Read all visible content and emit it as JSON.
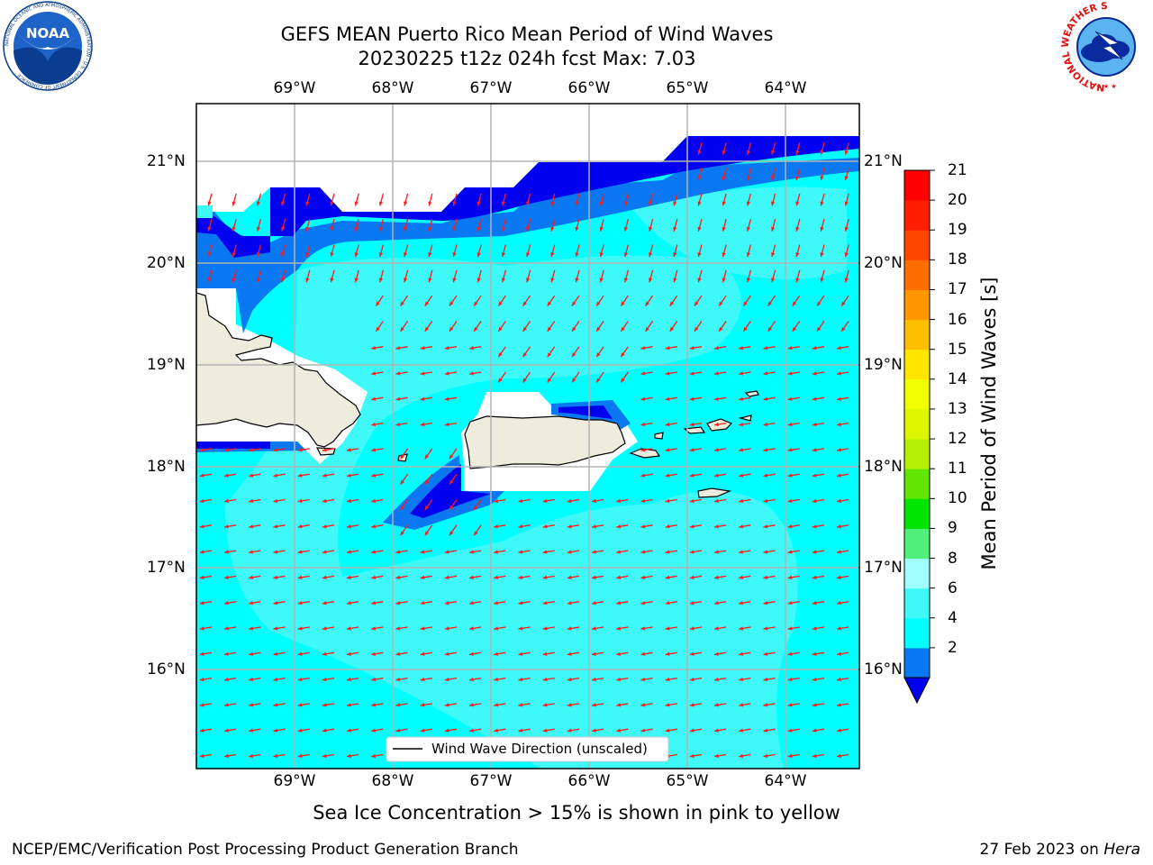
{
  "title": {
    "line1": "GEFS MEAN Puerto Rico Mean Period of Wind Waves",
    "line2": "20230225 t12z 024h fcst   Max: 7.03"
  },
  "longitude_labels": [
    "69°W",
    "68°W",
    "67°W",
    "66°W",
    "65°W",
    "64°W"
  ],
  "latitude_labels": [
    "21°N",
    "20°N",
    "19°N",
    "18°N",
    "17°N",
    "16°N"
  ],
  "legend": {
    "label": "Wind Wave Direction (unscaled)"
  },
  "colorbar": {
    "title": "Mean Period of Wind Waves [s]",
    "ticks": [
      "21",
      "20",
      "19",
      "18",
      "17",
      "16",
      "15",
      "14",
      "13",
      "12",
      "11",
      "10",
      "9",
      "8",
      "6",
      "4",
      "2"
    ],
    "colors": [
      "#0000ee",
      "#0a78f0",
      "#00ffff",
      "#3ff8f8",
      "#a0ffff",
      "#50f07a",
      "#00e600",
      "#60e600",
      "#b4f000",
      "#dcf500",
      "#f0ff00",
      "#ffe600",
      "#ffbe00",
      "#ff9600",
      "#ff6e00",
      "#ff4600",
      "#ff1e00",
      "#ff0000"
    ]
  },
  "note": "Sea Ice Concentration > 15% is shown in pink to yellow",
  "footer": {
    "left": "NCEP/EMC/Verification Post Processing Product Generation Branch",
    "right_date": "27 Feb 2023 on ",
    "right_host": "Hera"
  },
  "logos": {
    "noaa": "NOAA",
    "noaa_ring": "NATIONAL OCEANIC AND ATMOSPHERIC ADMINISTRATION · U.S. DEPARTMENT OF COMMERCE",
    "nws_ring": "NATIONAL WEATHER SERVICE"
  },
  "chart_data": {
    "type": "heatmap",
    "variable": "Mean Period of Wind Waves [s]",
    "lon_range": [
      -70.0,
      -63.3
    ],
    "lat_range": [
      15.05,
      21.6
    ],
    "color_levels": [
      2,
      4,
      6,
      8,
      9,
      10,
      11,
      12,
      13,
      14,
      15,
      16,
      17,
      18,
      19,
      20,
      21
    ],
    "max_value": 7.03,
    "wind_wave_direction": "toward southwest (from northeast)",
    "grid": true
  }
}
